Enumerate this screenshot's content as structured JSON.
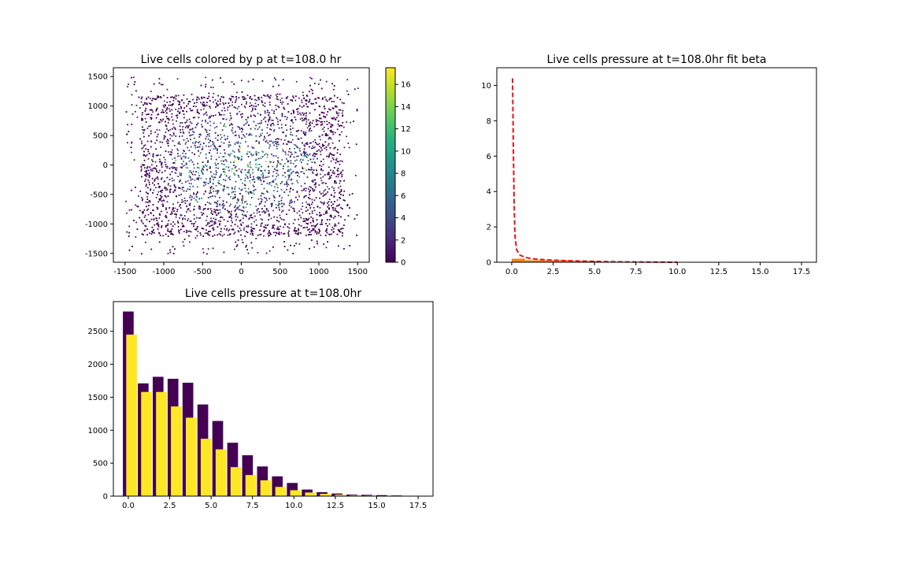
{
  "chart_data": [
    {
      "type": "scatter",
      "title": "Live cells colored by p at t=108.0 hr",
      "xlabel": "",
      "ylabel": "",
      "xlim": [
        -1650,
        1650
      ],
      "ylim": [
        -1650,
        1650
      ],
      "xticks": [
        -1500,
        -1000,
        -500,
        0,
        500,
        1000,
        1500
      ],
      "yticks": [
        -1500,
        -1000,
        -500,
        0,
        500,
        1000,
        1500
      ],
      "point_cloud": {
        "x_range": [
          -1500,
          1500
        ],
        "y_range": [
          -1500,
          1500
        ],
        "dense_x_range": [
          -1300,
          1300
        ],
        "dense_y_range": [
          -1200,
          1200
        ]
      },
      "colorbar": {
        "colormap": "viridis",
        "range": [
          0,
          17.5
        ],
        "ticks": [
          0,
          2,
          4,
          6,
          8,
          10,
          12,
          14,
          16
        ]
      }
    },
    {
      "type": "histogram",
      "title": "Live cells pressure at t=108.0hr fit beta",
      "xlabel": "",
      "ylabel": "",
      "xlim": [
        -0.9,
        18.4
      ],
      "ylim": [
        0,
        11
      ],
      "xticks": [
        0.0,
        2.5,
        5.0,
        7.5,
        10.0,
        12.5,
        15.0,
        17.5
      ],
      "yticks": [
        0,
        2,
        4,
        6,
        8,
        10
      ],
      "hist_orange": [
        {
          "x0": 0.0,
          "x1": 0.8,
          "h": 0.2
        },
        {
          "x0": 0.8,
          "x1": 3.5,
          "h": 0.11
        },
        {
          "x0": 3.5,
          "x1": 5.3,
          "h": 0.07
        },
        {
          "x0": 5.3,
          "x1": 7.0,
          "h": 0.03
        },
        {
          "x0": 7.0,
          "x1": 9.5,
          "h": 0.01
        }
      ],
      "fit_line": {
        "color": "#e3161d",
        "style": "dashed",
        "x": [
          0.05,
          0.1,
          0.15,
          0.2,
          0.3,
          0.5,
          0.8,
          1.2,
          2.0,
          3.0,
          4.0,
          5.0,
          6.0,
          7.0,
          8.0,
          9.0,
          10.0
        ],
        "y": [
          10.4,
          6.5,
          3.2,
          1.5,
          0.7,
          0.4,
          0.28,
          0.2,
          0.14,
          0.1,
          0.07,
          0.05,
          0.03,
          0.02,
          0.012,
          0.006,
          0.002
        ]
      }
    },
    {
      "type": "bar",
      "title": "Live cells pressure at t=108.0hr",
      "xlabel": "",
      "ylabel": "",
      "xlim": [
        -0.9,
        18.4
      ],
      "ylim": [
        0,
        2950
      ],
      "xticks": [
        0.0,
        2.5,
        5.0,
        7.5,
        10.0,
        12.5,
        15.0,
        17.5
      ],
      "yticks": [
        0,
        500,
        1000,
        1500,
        2000,
        2500
      ],
      "bar_width": 0.65,
      "series": [
        {
          "color": "#440154",
          "x": [
            0.0,
            0.9,
            1.8,
            2.7,
            3.6,
            4.5,
            5.4,
            6.3,
            7.2,
            8.1,
            9.0,
            9.9,
            10.8,
            11.7,
            12.6,
            13.5,
            14.4,
            15.3,
            16.2,
            17.1
          ],
          "values": [
            2800,
            1710,
            1810,
            1780,
            1720,
            1390,
            1140,
            810,
            620,
            450,
            300,
            200,
            100,
            60,
            40,
            25,
            20,
            15,
            10,
            5
          ]
        },
        {
          "color": "#fde725",
          "x": [
            0.2,
            1.1,
            2.0,
            2.9,
            3.8,
            4.7,
            5.6,
            6.5,
            7.4,
            8.3,
            9.2,
            10.1,
            11.0,
            11.9,
            12.8,
            13.7,
            14.6,
            15.5,
            16.4,
            17.3
          ],
          "values": [
            2450,
            1580,
            1580,
            1360,
            1190,
            870,
            710,
            440,
            320,
            240,
            140,
            90,
            55,
            35,
            22,
            15,
            10,
            5,
            3,
            2
          ]
        }
      ]
    }
  ]
}
